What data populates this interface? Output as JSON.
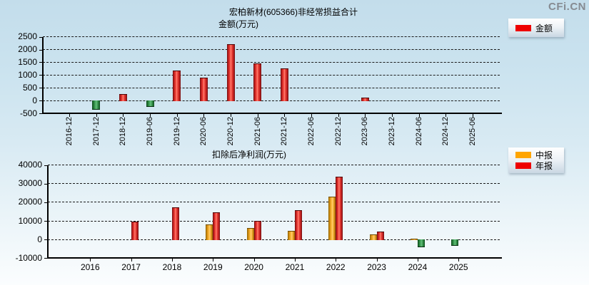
{
  "logo": "CFi.CN",
  "colors": {
    "positive_bar_red": "#e03434",
    "negative_bar_green": "#2a8a3f",
    "interim_bar_orange": "#ffa500",
    "legend_swatch_red": "#ee0000",
    "legend_swatch_orange": "#ffa500",
    "background_top": "#c3ddeb",
    "background_bottom": "#fbfdfe",
    "logo_gray": "#868b92"
  },
  "chart_data": [
    {
      "type": "bar",
      "title": "宏柏新材(605366)非经常损益合计",
      "subtitle": "金额(万元)",
      "legend": [
        "金额"
      ],
      "legend_position": "top-right",
      "grid": true,
      "ylim": [
        -500,
        2500
      ],
      "ytick_step": 500,
      "ytick_labels": [
        "-500",
        "0",
        "500",
        "1000",
        "1500",
        "2000",
        "2500"
      ],
      "categories": [
        "2016-12",
        "2017-12",
        "2018-12",
        "2019-06",
        "2019-12",
        "2020-06",
        "2020-12",
        "2021-06",
        "2021-12",
        "2022-06",
        "2022-12",
        "2023-06",
        "2023-12",
        "2024-06",
        "2024-12",
        "2025-06"
      ],
      "series": [
        {
          "name": "金额",
          "values": [
            null,
            -330,
            260,
            -215,
            1180,
            900,
            2210,
            1450,
            1270,
            null,
            null,
            120,
            null,
            null,
            null,
            null
          ]
        }
      ]
    },
    {
      "type": "bar",
      "title": "扣除后净利润(万元)",
      "legend": [
        "中报",
        "年报"
      ],
      "legend_position": "top-right",
      "grid": true,
      "ylim": [
        -10000,
        40000
      ],
      "ytick_step": 10000,
      "ytick_labels": [
        "-10000",
        "0",
        "10000",
        "20000",
        "30000",
        "40000"
      ],
      "categories": [
        "2016",
        "2017",
        "2018",
        "2019",
        "2020",
        "2021",
        "2022",
        "2023",
        "2024",
        "2025"
      ],
      "series": [
        {
          "name": "中报",
          "values": [
            null,
            null,
            null,
            8100,
            6100,
            4700,
            23000,
            2700,
            400,
            -3100
          ]
        },
        {
          "name": "年报",
          "values": [
            null,
            9700,
            17300,
            14700,
            10100,
            15700,
            33700,
            4400,
            -3600,
            null
          ]
        }
      ]
    }
  ]
}
